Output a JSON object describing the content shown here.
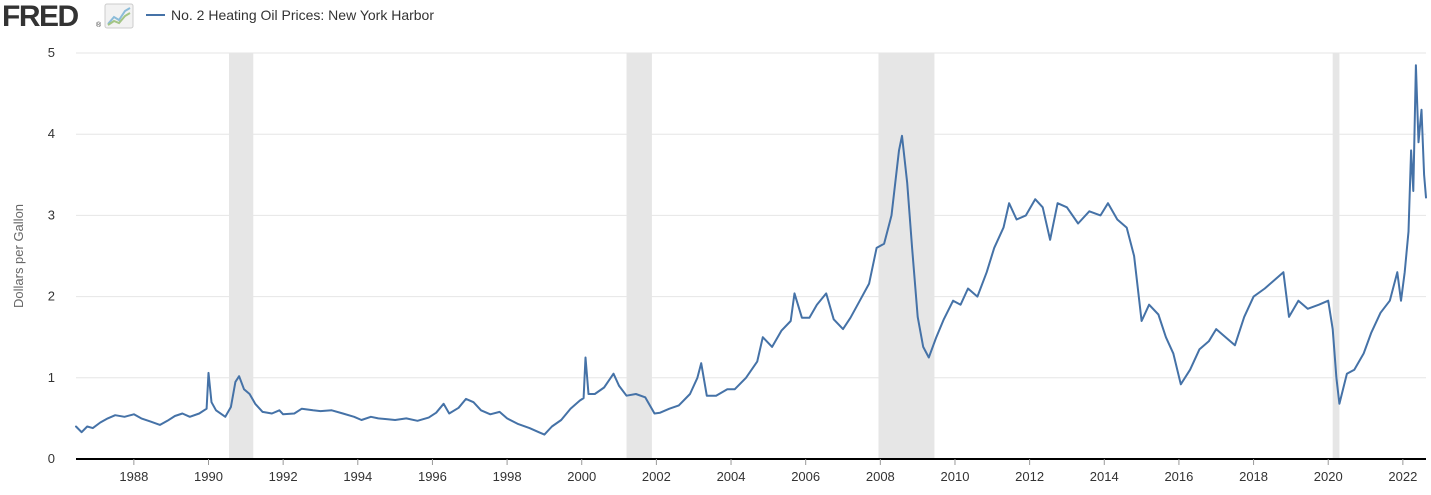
{
  "header": {
    "logo_text": "FRED",
    "logo_registered": "®",
    "logo_icon": "line-chart-icon",
    "legend_label": "No. 2 Heating Oil Prices: New York Harbor"
  },
  "colors": {
    "series": "#4572a7",
    "recession": "#e6e6e6",
    "grid": "#e6e6e6",
    "axis": "#000000",
    "text": "#333333",
    "logo_text": "#333333",
    "logo_icon_up": "#8bbcd9",
    "logo_icon_down": "#a3c585"
  },
  "chart_data": {
    "type": "line",
    "title": "",
    "xlabel": "",
    "ylabel": "Dollars per Gallon",
    "ylim": [
      0,
      5
    ],
    "yticks": [
      0,
      1,
      2,
      3,
      4,
      5
    ],
    "xlim": [
      1986.45,
      2022.62
    ],
    "xticks": [
      "1988",
      "1990",
      "1992",
      "1994",
      "1996",
      "1998",
      "2000",
      "2002",
      "2004",
      "2006",
      "2008",
      "2010",
      "2012",
      "2014",
      "2016",
      "2018",
      "2020",
      "2022"
    ],
    "grid": true,
    "legend_position": "top-left",
    "recessions": [
      {
        "start": 1990.55,
        "end": 1991.2
      },
      {
        "start": 2001.2,
        "end": 2001.88
      },
      {
        "start": 2007.95,
        "end": 2009.45
      },
      {
        "start": 2020.12,
        "end": 2020.3
      }
    ],
    "series": [
      {
        "name": "No. 2 Heating Oil Prices: New York Harbor",
        "points": [
          [
            1986.45,
            0.4
          ],
          [
            1986.6,
            0.33
          ],
          [
            1986.75,
            0.4
          ],
          [
            1986.9,
            0.38
          ],
          [
            1987.1,
            0.45
          ],
          [
            1987.3,
            0.5
          ],
          [
            1987.5,
            0.54
          ],
          [
            1987.75,
            0.52
          ],
          [
            1988.0,
            0.55
          ],
          [
            1988.2,
            0.5
          ],
          [
            1988.45,
            0.46
          ],
          [
            1988.7,
            0.42
          ],
          [
            1988.9,
            0.47
          ],
          [
            1989.1,
            0.53
          ],
          [
            1989.3,
            0.56
          ],
          [
            1989.5,
            0.52
          ],
          [
            1989.75,
            0.56
          ],
          [
            1989.95,
            0.62
          ],
          [
            1990.0,
            1.06
          ],
          [
            1990.08,
            0.7
          ],
          [
            1990.2,
            0.6
          ],
          [
            1990.45,
            0.52
          ],
          [
            1990.6,
            0.64
          ],
          [
            1990.72,
            0.95
          ],
          [
            1990.82,
            1.02
          ],
          [
            1990.95,
            0.86
          ],
          [
            1991.1,
            0.8
          ],
          [
            1991.25,
            0.68
          ],
          [
            1991.45,
            0.58
          ],
          [
            1991.7,
            0.56
          ],
          [
            1991.9,
            0.6
          ],
          [
            1992.0,
            0.55
          ],
          [
            1992.3,
            0.56
          ],
          [
            1992.5,
            0.62
          ],
          [
            1992.8,
            0.6
          ],
          [
            1993.0,
            0.59
          ],
          [
            1993.3,
            0.6
          ],
          [
            1993.6,
            0.56
          ],
          [
            1993.9,
            0.52
          ],
          [
            1994.1,
            0.48
          ],
          [
            1994.35,
            0.52
          ],
          [
            1994.55,
            0.5
          ],
          [
            1994.8,
            0.49
          ],
          [
            1995.0,
            0.48
          ],
          [
            1995.3,
            0.5
          ],
          [
            1995.6,
            0.47
          ],
          [
            1995.9,
            0.51
          ],
          [
            1996.1,
            0.57
          ],
          [
            1996.3,
            0.68
          ],
          [
            1996.45,
            0.56
          ],
          [
            1996.7,
            0.63
          ],
          [
            1996.9,
            0.74
          ],
          [
            1997.1,
            0.7
          ],
          [
            1997.3,
            0.6
          ],
          [
            1997.55,
            0.55
          ],
          [
            1997.8,
            0.58
          ],
          [
            1998.0,
            0.5
          ],
          [
            1998.3,
            0.43
          ],
          [
            1998.6,
            0.38
          ],
          [
            1998.85,
            0.33
          ],
          [
            1999.0,
            0.3
          ],
          [
            1999.2,
            0.4
          ],
          [
            1999.45,
            0.48
          ],
          [
            1999.7,
            0.62
          ],
          [
            1999.95,
            0.72
          ],
          [
            2000.05,
            0.75
          ],
          [
            2000.1,
            1.25
          ],
          [
            2000.18,
            0.8
          ],
          [
            2000.35,
            0.8
          ],
          [
            2000.6,
            0.88
          ],
          [
            2000.85,
            1.05
          ],
          [
            2001.0,
            0.9
          ],
          [
            2001.2,
            0.78
          ],
          [
            2001.45,
            0.8
          ],
          [
            2001.7,
            0.76
          ],
          [
            2001.95,
            0.56
          ],
          [
            2002.1,
            0.57
          ],
          [
            2002.35,
            0.62
          ],
          [
            2002.6,
            0.66
          ],
          [
            2002.9,
            0.8
          ],
          [
            2003.1,
            1.0
          ],
          [
            2003.2,
            1.18
          ],
          [
            2003.35,
            0.78
          ],
          [
            2003.6,
            0.78
          ],
          [
            2003.9,
            0.86
          ],
          [
            2004.1,
            0.86
          ],
          [
            2004.4,
            1.0
          ],
          [
            2004.7,
            1.2
          ],
          [
            2004.85,
            1.5
          ],
          [
            2005.1,
            1.38
          ],
          [
            2005.35,
            1.58
          ],
          [
            2005.6,
            1.7
          ],
          [
            2005.7,
            2.04
          ],
          [
            2005.9,
            1.74
          ],
          [
            2006.1,
            1.74
          ],
          [
            2006.3,
            1.9
          ],
          [
            2006.55,
            2.04
          ],
          [
            2006.75,
            1.72
          ],
          [
            2007.0,
            1.6
          ],
          [
            2007.2,
            1.74
          ],
          [
            2007.45,
            1.95
          ],
          [
            2007.7,
            2.16
          ],
          [
            2007.9,
            2.6
          ],
          [
            2008.1,
            2.65
          ],
          [
            2008.3,
            3.0
          ],
          [
            2008.5,
            3.8
          ],
          [
            2008.58,
            3.98
          ],
          [
            2008.72,
            3.4
          ],
          [
            2008.85,
            2.6
          ],
          [
            2009.0,
            1.75
          ],
          [
            2009.15,
            1.38
          ],
          [
            2009.3,
            1.25
          ],
          [
            2009.5,
            1.5
          ],
          [
            2009.7,
            1.72
          ],
          [
            2009.95,
            1.95
          ],
          [
            2010.15,
            1.9
          ],
          [
            2010.35,
            2.1
          ],
          [
            2010.6,
            2.0
          ],
          [
            2010.85,
            2.3
          ],
          [
            2011.05,
            2.6
          ],
          [
            2011.3,
            2.85
          ],
          [
            2011.45,
            3.15
          ],
          [
            2011.65,
            2.95
          ],
          [
            2011.9,
            3.0
          ],
          [
            2012.15,
            3.2
          ],
          [
            2012.35,
            3.1
          ],
          [
            2012.55,
            2.7
          ],
          [
            2012.75,
            3.15
          ],
          [
            2013.0,
            3.1
          ],
          [
            2013.3,
            2.9
          ],
          [
            2013.6,
            3.05
          ],
          [
            2013.9,
            3.0
          ],
          [
            2014.1,
            3.15
          ],
          [
            2014.35,
            2.95
          ],
          [
            2014.6,
            2.85
          ],
          [
            2014.8,
            2.5
          ],
          [
            2015.0,
            1.7
          ],
          [
            2015.2,
            1.9
          ],
          [
            2015.45,
            1.78
          ],
          [
            2015.65,
            1.5
          ],
          [
            2015.85,
            1.3
          ],
          [
            2016.05,
            0.92
          ],
          [
            2016.3,
            1.1
          ],
          [
            2016.55,
            1.35
          ],
          [
            2016.8,
            1.45
          ],
          [
            2017.0,
            1.6
          ],
          [
            2017.25,
            1.5
          ],
          [
            2017.5,
            1.4
          ],
          [
            2017.75,
            1.75
          ],
          [
            2018.0,
            2.0
          ],
          [
            2018.3,
            2.1
          ],
          [
            2018.55,
            2.2
          ],
          [
            2018.8,
            2.3
          ],
          [
            2018.95,
            1.75
          ],
          [
            2019.2,
            1.95
          ],
          [
            2019.45,
            1.85
          ],
          [
            2019.75,
            1.9
          ],
          [
            2020.0,
            1.95
          ],
          [
            2020.12,
            1.6
          ],
          [
            2020.22,
            1.0
          ],
          [
            2020.3,
            0.68
          ],
          [
            2020.5,
            1.05
          ],
          [
            2020.7,
            1.1
          ],
          [
            2020.95,
            1.3
          ],
          [
            2021.15,
            1.55
          ],
          [
            2021.4,
            1.8
          ],
          [
            2021.65,
            1.95
          ],
          [
            2021.85,
            2.3
          ],
          [
            2021.95,
            1.95
          ],
          [
            2022.05,
            2.3
          ],
          [
            2022.15,
            2.8
          ],
          [
            2022.22,
            3.8
          ],
          [
            2022.28,
            3.3
          ],
          [
            2022.35,
            4.85
          ],
          [
            2022.42,
            3.9
          ],
          [
            2022.5,
            4.3
          ],
          [
            2022.57,
            3.5
          ],
          [
            2022.62,
            3.22
          ]
        ]
      }
    ]
  }
}
